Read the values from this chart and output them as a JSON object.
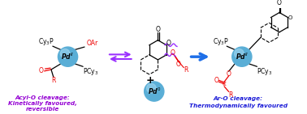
{
  "bg_color": "#ffffff",
  "left_label_line1": "Acyl-O cleavage:",
  "left_label_line2": "Kinetically favoured,",
  "left_label_line3": "reversible",
  "right_label_line1": "Ar-O cleavage:",
  "right_label_line2": "Thermodynamically favoured",
  "left_label_color": "#9400D3",
  "right_label_color": "#1C1CD8",
  "arrow_left_color": "#9B30FF",
  "arrow_right_color": "#1E6FE8",
  "red_color": "#EE0000",
  "black_color": "#000000",
  "pd_color": "#5AAED6",
  "pd_highlight": "#A8D8F0",
  "figsize": [
    3.78,
    1.41
  ],
  "dpi": 100
}
